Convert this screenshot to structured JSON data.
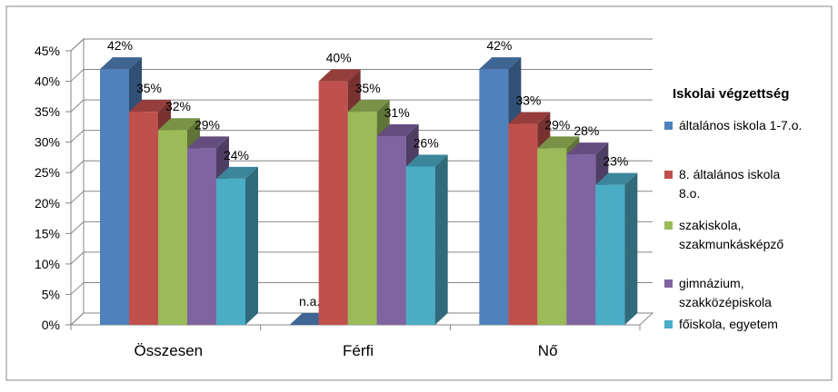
{
  "chart_data": {
    "type": "bar",
    "categories": [
      "Összesen",
      "Férfi",
      "Nő"
    ],
    "legend_title": "Iskolai végzettség",
    "legend_position": "right",
    "grid": true,
    "ylim": [
      0,
      45
    ],
    "yticks": [
      0,
      5,
      10,
      15,
      20,
      25,
      30,
      35,
      40,
      45
    ],
    "ytick_labels": [
      "0%",
      "5%",
      "10%",
      "15%",
      "20%",
      "25%",
      "30%",
      "35%",
      "40%",
      "45%"
    ],
    "series": [
      {
        "name": "általános iskola 1-7.o.",
        "values": [
          42,
          0,
          42
        ],
        "labels": [
          "42%",
          "n.a.",
          "42%"
        ],
        "color": "#4F81BD"
      },
      {
        "name": "8. általános iskola 8.o.",
        "legend_lines": [
          "8. általános iskola",
          "8.o."
        ],
        "values": [
          35,
          40,
          33
        ],
        "labels": [
          "35%",
          "40%",
          "33%"
        ],
        "color": "#C0504D"
      },
      {
        "name": "szakiskola, szakmunkásképző",
        "legend_lines": [
          "szakiskola,",
          "szakmunkásképző"
        ],
        "values": [
          32,
          35,
          29
        ],
        "labels": [
          "32%",
          "35%",
          "29%"
        ],
        "color": "#9BBB59"
      },
      {
        "name": "gimnázium, szakközépiskola",
        "legend_lines": [
          "gimnázium,",
          "szakközépiskola"
        ],
        "values": [
          29,
          31,
          28
        ],
        "labels": [
          "29%",
          "31%",
          "28%"
        ],
        "color": "#8064A2"
      },
      {
        "name": "főiskola, egyetem",
        "values": [
          24,
          26,
          23
        ],
        "labels": [
          "24%",
          "26%",
          "23%"
        ],
        "color": "#4BACC6"
      }
    ]
  }
}
